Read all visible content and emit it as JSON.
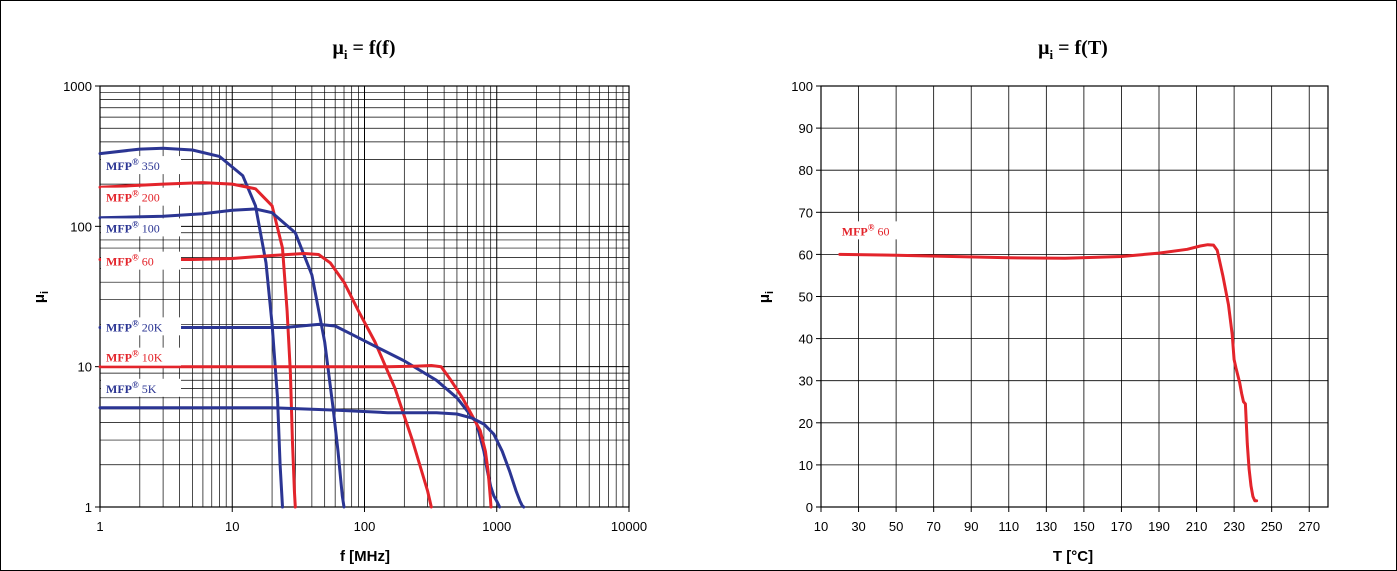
{
  "chart_data": [
    {
      "type": "line",
      "title": "μi = f(f)",
      "title_main": "μ",
      "title_sub": "i",
      "title_rest": " = f(f)",
      "xlabel": "f [MHz]",
      "ylabel": "μi",
      "ylabel_main": "μ",
      "ylabel_sub": "i",
      "xscale": "log",
      "yscale": "log",
      "xlim": [
        1,
        10000
      ],
      "ylim": [
        1,
        1000
      ],
      "xticks": [
        1,
        10,
        100,
        1000,
        10000
      ],
      "xtick_labels": [
        "1",
        "10",
        "100",
        "1000",
        "10000"
      ],
      "yticks": [
        1,
        10,
        100,
        1000
      ],
      "ytick_labels": [
        "1",
        "10",
        "100",
        "1000"
      ],
      "grid": true,
      "series": [
        {
          "name": "MFP® 350",
          "label_brand": "MFP",
          "label_reg": "®",
          "label_value": " 350",
          "color": "#2b3593",
          "label_y": 0.805,
          "x": [
            1,
            2,
            3,
            5,
            8,
            12,
            15,
            18,
            20,
            22,
            23,
            24
          ],
          "y": [
            330,
            355,
            360,
            350,
            315,
            230,
            140,
            55,
            20,
            6,
            2,
            1
          ]
        },
        {
          "name": "MFP® 200",
          "label_brand": "MFP",
          "label_reg": "®",
          "label_value": " 200",
          "color": "#e3242b",
          "label_y": 0.73,
          "x": [
            1,
            3,
            6,
            10,
            15,
            20,
            24,
            26,
            27.5,
            28.5,
            29.5,
            30
          ],
          "y": [
            190,
            200,
            205,
            200,
            185,
            140,
            70,
            25,
            9,
            3,
            1.3,
            1
          ]
        },
        {
          "name": "MFP® 100",
          "label_brand": "MFP",
          "label_reg": "®",
          "label_value": " 100",
          "color": "#2b3593",
          "label_y": 0.657,
          "x": [
            1,
            3,
            6,
            10,
            15,
            20,
            30,
            40,
            50,
            58,
            63,
            66,
            68,
            70
          ],
          "y": [
            115,
            118,
            123,
            130,
            133,
            125,
            90,
            45,
            15,
            5,
            2.5,
            1.6,
            1.2,
            1
          ]
        },
        {
          "name": "MFP® 60",
          "label_brand": "MFP",
          "label_reg": "®",
          "label_value": " 60",
          "color": "#e3242b",
          "label_y": 0.578,
          "x": [
            1,
            5,
            10,
            20,
            35,
            45,
            55,
            70,
            90,
            120,
            170,
            230,
            300,
            320
          ],
          "y": [
            58,
            58,
            59,
            62,
            64,
            63,
            55,
            40,
            25,
            15,
            7,
            3,
            1.3,
            1
          ]
        },
        {
          "name": "MFP® 20K",
          "label_brand": "MFP",
          "label_reg": "®",
          "label_value": " 20K",
          "color": "#2b3593",
          "label_y": 0.422,
          "x": [
            1,
            10,
            25,
            45,
            60,
            80,
            120,
            200,
            350,
            500,
            700,
            800,
            850,
            900,
            950,
            1000,
            1050
          ],
          "y": [
            19,
            19,
            19,
            20,
            19.5,
            17,
            14,
            11,
            8,
            6,
            4,
            2.5,
            1.8,
            1.4,
            1.2,
            1.1,
            1
          ]
        },
        {
          "name": "MFP® 10K",
          "label_brand": "MFP",
          "label_reg": "®",
          "label_value": " 10K",
          "color": "#e3242b",
          "label_y": 0.35,
          "x": [
            1,
            50,
            150,
            250,
            320,
            380,
            450,
            550,
            650,
            750,
            820,
            860,
            880,
            895,
            905
          ],
          "y": [
            10,
            10,
            10,
            10.1,
            10.2,
            10,
            8,
            6,
            4.5,
            3.5,
            2.5,
            1.8,
            1.4,
            1.15,
            1
          ]
        },
        {
          "name": "MFP® 5K",
          "label_brand": "MFP",
          "label_reg": "®",
          "label_value": " 5K",
          "color": "#2b3593",
          "label_y": 0.276,
          "x": [
            1,
            20,
            60,
            150,
            350,
            500,
            650,
            800,
            950,
            1100,
            1250,
            1400,
            1500,
            1560,
            1600
          ],
          "y": [
            5.1,
            5.1,
            4.9,
            4.7,
            4.7,
            4.6,
            4.3,
            3.9,
            3.3,
            2.5,
            1.8,
            1.3,
            1.1,
            1.02,
            1
          ]
        }
      ]
    },
    {
      "type": "line",
      "title": "μi = f(T)",
      "title_main": "μ",
      "title_sub": "i",
      "title_rest": " = f(T)",
      "xlabel": "T [°C]",
      "ylabel": "μi",
      "ylabel_main": "μ",
      "ylabel_sub": "i",
      "xlim": [
        10,
        280
      ],
      "ylim": [
        0,
        100
      ],
      "xticks": [
        10,
        30,
        50,
        70,
        90,
        110,
        130,
        150,
        170,
        190,
        210,
        230,
        250,
        270
      ],
      "xtick_labels": [
        "10",
        "30",
        "50",
        "70",
        "90",
        "110",
        "130",
        "150",
        "170",
        "190",
        "210",
        "230",
        "250",
        "270"
      ],
      "yticks": [
        0,
        10,
        20,
        30,
        40,
        50,
        60,
        70,
        80,
        90,
        100
      ],
      "ytick_labels": [
        "0",
        "10",
        "20",
        "30",
        "40",
        "50",
        "60",
        "70",
        "80",
        "90",
        "100"
      ],
      "grid": true,
      "series": [
        {
          "name": "MFP® 60",
          "label_brand": "MFP",
          "label_reg": "®",
          "label_value": " 60",
          "color": "#e3242b",
          "label_x": 20,
          "label_y": 65,
          "x": [
            20,
            50,
            80,
            110,
            140,
            170,
            190,
            205,
            212,
            216,
            219,
            221,
            224,
            227,
            229,
            230,
            231,
            233,
            234,
            235,
            236,
            237,
            238,
            239,
            240,
            241,
            242
          ],
          "y": [
            60,
            59.8,
            59.5,
            59.2,
            59.1,
            59.5,
            60.3,
            61.2,
            62,
            62.3,
            62.2,
            61,
            55,
            48,
            41,
            35,
            33,
            29.5,
            27,
            25,
            24.5,
            15,
            9,
            5,
            2.5,
            1.5,
            1.5
          ]
        }
      ]
    }
  ]
}
